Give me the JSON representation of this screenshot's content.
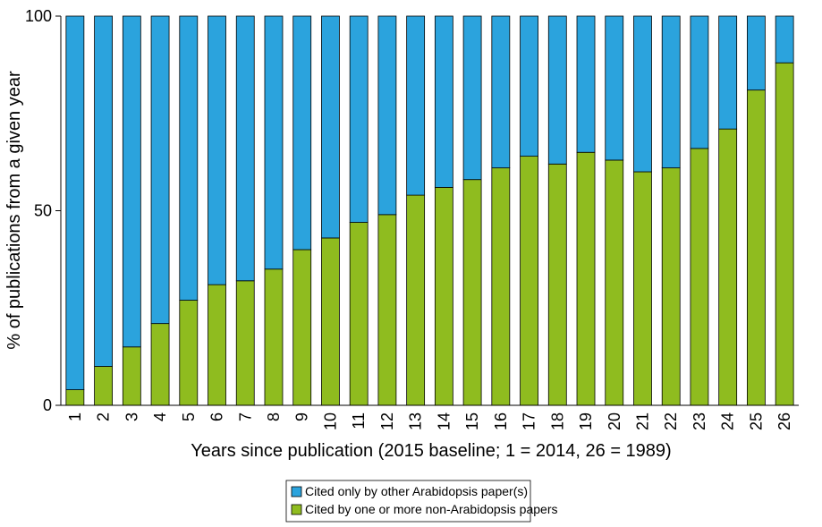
{
  "chart_data": {
    "type": "stacked-bar",
    "x_label": "Years since publication (2015 baseline; 1 = 2014, 26 = 1989)",
    "y_label": "% of publications from a given year",
    "categories": [
      "1",
      "2",
      "3",
      "4",
      "5",
      "6",
      "7",
      "8",
      "9",
      "10",
      "11",
      "12",
      "13",
      "14",
      "15",
      "16",
      "17",
      "18",
      "19",
      "20",
      "21",
      "22",
      "23",
      "24",
      "25",
      "26"
    ],
    "series": [
      {
        "name": "Cited by one or more non-Arabidopsis papers",
        "color": "#8fbc1f",
        "values": [
          4,
          10,
          15,
          21,
          27,
          31,
          32,
          35,
          40,
          43,
          47,
          49,
          54,
          56,
          58,
          61,
          64,
          62,
          65,
          63,
          60,
          61,
          66,
          71,
          81,
          88
        ]
      },
      {
        "name": "Cited only by other Arabidopsis paper(s)",
        "color": "#2ba3dd",
        "values": [
          96,
          90,
          85,
          79,
          73,
          69,
          68,
          65,
          60,
          57,
          53,
          51,
          46,
          44,
          42,
          39,
          36,
          38,
          35,
          37,
          40,
          39,
          34,
          29,
          19,
          12
        ]
      }
    ],
    "ylim": [
      0,
      100
    ],
    "yticks": [
      0,
      50,
      100
    ],
    "legend": "bottom"
  }
}
